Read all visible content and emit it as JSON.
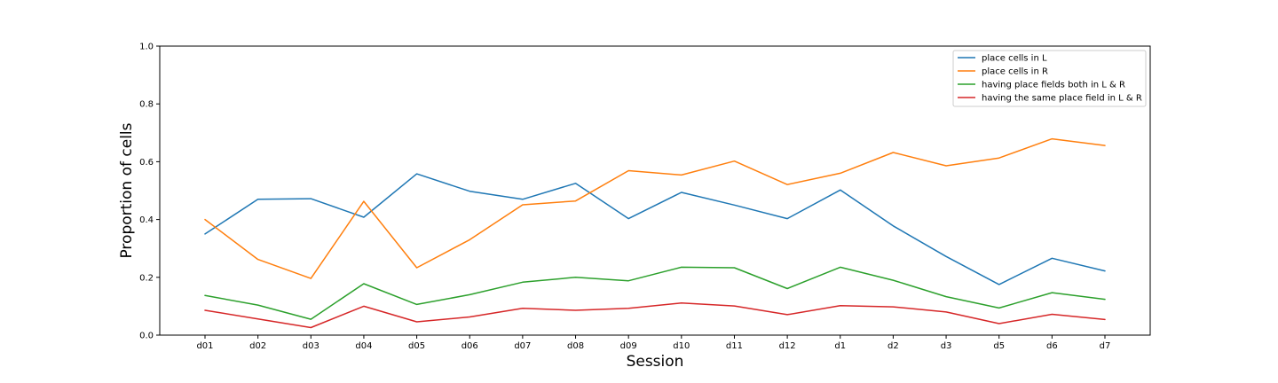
{
  "chart_data": {
    "type": "line",
    "title": "",
    "xlabel": "Session",
    "ylabel": "Proportion of cells",
    "ylim": [
      0.0,
      1.0
    ],
    "yticks": [
      "0.0",
      "0.2",
      "0.4",
      "0.6",
      "0.8",
      "1.0"
    ],
    "grid": false,
    "legend_position": "top-right",
    "categories": [
      "d01",
      "d02",
      "d03",
      "d04",
      "d05",
      "d06",
      "d07",
      "d08",
      "d09",
      "d10",
      "d11",
      "d12",
      "d1",
      "d2",
      "d3",
      "d5",
      "d6",
      "d7"
    ],
    "series": [
      {
        "name": "place cells in L",
        "color": "#1f77b4",
        "values": [
          0.35,
          0.47,
          0.472,
          0.408,
          0.558,
          0.498,
          0.47,
          0.525,
          0.403,
          0.494,
          0.45,
          0.403,
          0.502,
          0.378,
          0.272,
          0.175,
          0.266,
          0.222
        ]
      },
      {
        "name": "place cells in R",
        "color": "#ff7f0e",
        "values": [
          0.4,
          0.262,
          0.196,
          0.463,
          0.233,
          0.33,
          0.451,
          0.464,
          0.569,
          0.554,
          0.602,
          0.521,
          0.56,
          0.632,
          0.586,
          0.613,
          0.679,
          0.656
        ]
      },
      {
        "name": "having place fields both in L & R",
        "color": "#2ca02c",
        "values": [
          0.137,
          0.104,
          0.055,
          0.178,
          0.106,
          0.14,
          0.183,
          0.2,
          0.188,
          0.235,
          0.233,
          0.161,
          0.235,
          0.19,
          0.133,
          0.094,
          0.147,
          0.124
        ]
      },
      {
        "name": "having the same place field in L & R",
        "color": "#d62728",
        "values": [
          0.086,
          0.056,
          0.026,
          0.1,
          0.046,
          0.063,
          0.093,
          0.086,
          0.093,
          0.111,
          0.101,
          0.071,
          0.102,
          0.098,
          0.08,
          0.04,
          0.072,
          0.054
        ]
      }
    ]
  }
}
